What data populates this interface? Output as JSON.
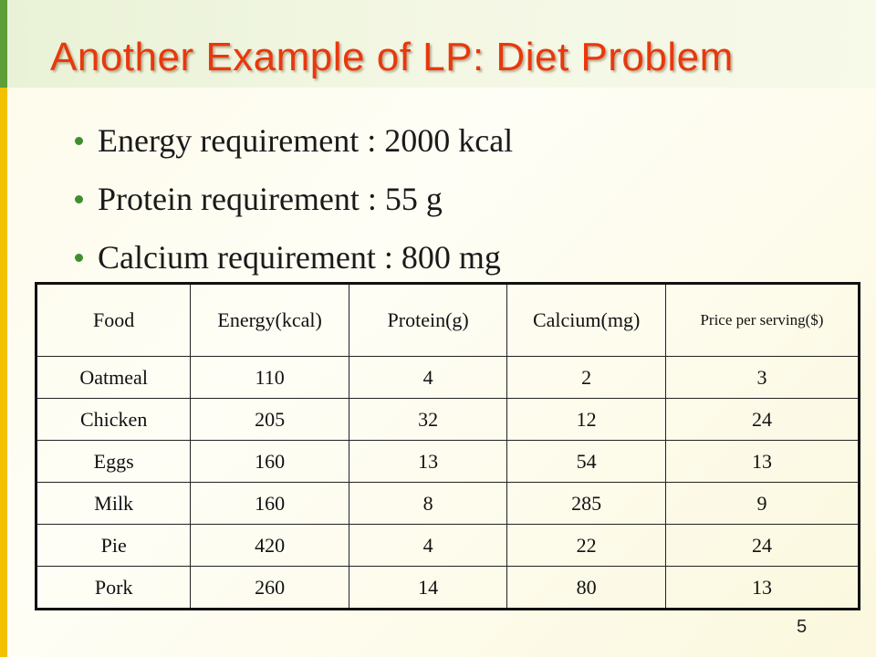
{
  "title": "Another Example of LP: Diet Problem",
  "bullets": [
    "Energy requirement : 2000 kcal",
    "Protein requirement : 55 g",
    "Calcium requirement : 800 mg"
  ],
  "table": {
    "headers": [
      "Food",
      "Energy(kcal)",
      "Protein(g)",
      "Calcium(mg)",
      "Price per serving($)"
    ],
    "rows": [
      [
        "Oatmeal",
        "110",
        "4",
        "2",
        "3"
      ],
      [
        "Chicken",
        "205",
        "32",
        "12",
        "24"
      ],
      [
        "Eggs",
        "160",
        "13",
        "54",
        "13"
      ],
      [
        "Milk",
        "160",
        "8",
        "285",
        "9"
      ],
      [
        "Pie",
        "420",
        "4",
        "22",
        "24"
      ],
      [
        "Pork",
        "260",
        "14",
        "80",
        "13"
      ]
    ]
  },
  "page_number": "5",
  "colors": {
    "title": "#e8380d",
    "accent_bar": "#f2c200",
    "bullet": "#3f8f2e"
  }
}
